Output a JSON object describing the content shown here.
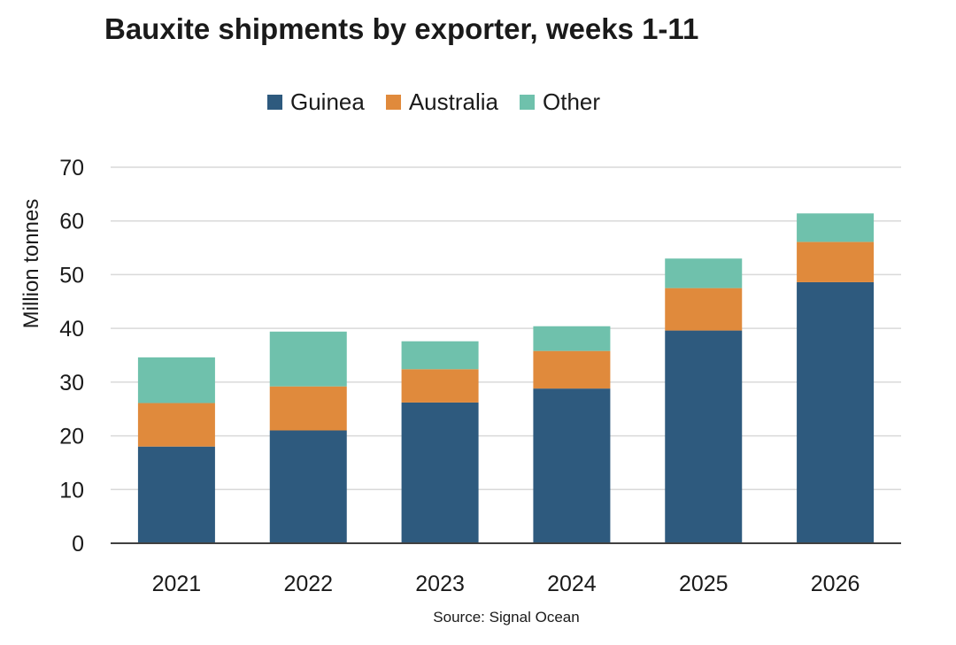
{
  "title": "Bauxite shipments by exporter, weeks 1-11",
  "source": "Source: Signal Ocean",
  "chart_data": {
    "type": "bar",
    "stacked": true,
    "title": "Bauxite shipments by exporter, weeks 1-11",
    "xlabel": "",
    "ylabel": "Million tonnes",
    "ylim": [
      0,
      70
    ],
    "yticks": [
      0,
      10,
      20,
      30,
      40,
      50,
      60,
      70
    ],
    "grid": true,
    "legend_position": "top",
    "categories": [
      "2021",
      "2022",
      "2023",
      "2024",
      "2025",
      "2026"
    ],
    "series": [
      {
        "name": "Guinea",
        "color": "#2e5a7e",
        "values": [
          18.0,
          21.0,
          26.2,
          28.8,
          39.6,
          48.6
        ]
      },
      {
        "name": "Australia",
        "color": "#e08a3c",
        "values": [
          8.1,
          8.2,
          6.2,
          7.0,
          7.9,
          7.5
        ]
      },
      {
        "name": "Other",
        "color": "#6fc1ac",
        "values": [
          8.5,
          10.2,
          5.2,
          4.6,
          5.5,
          5.3
        ]
      }
    ]
  }
}
